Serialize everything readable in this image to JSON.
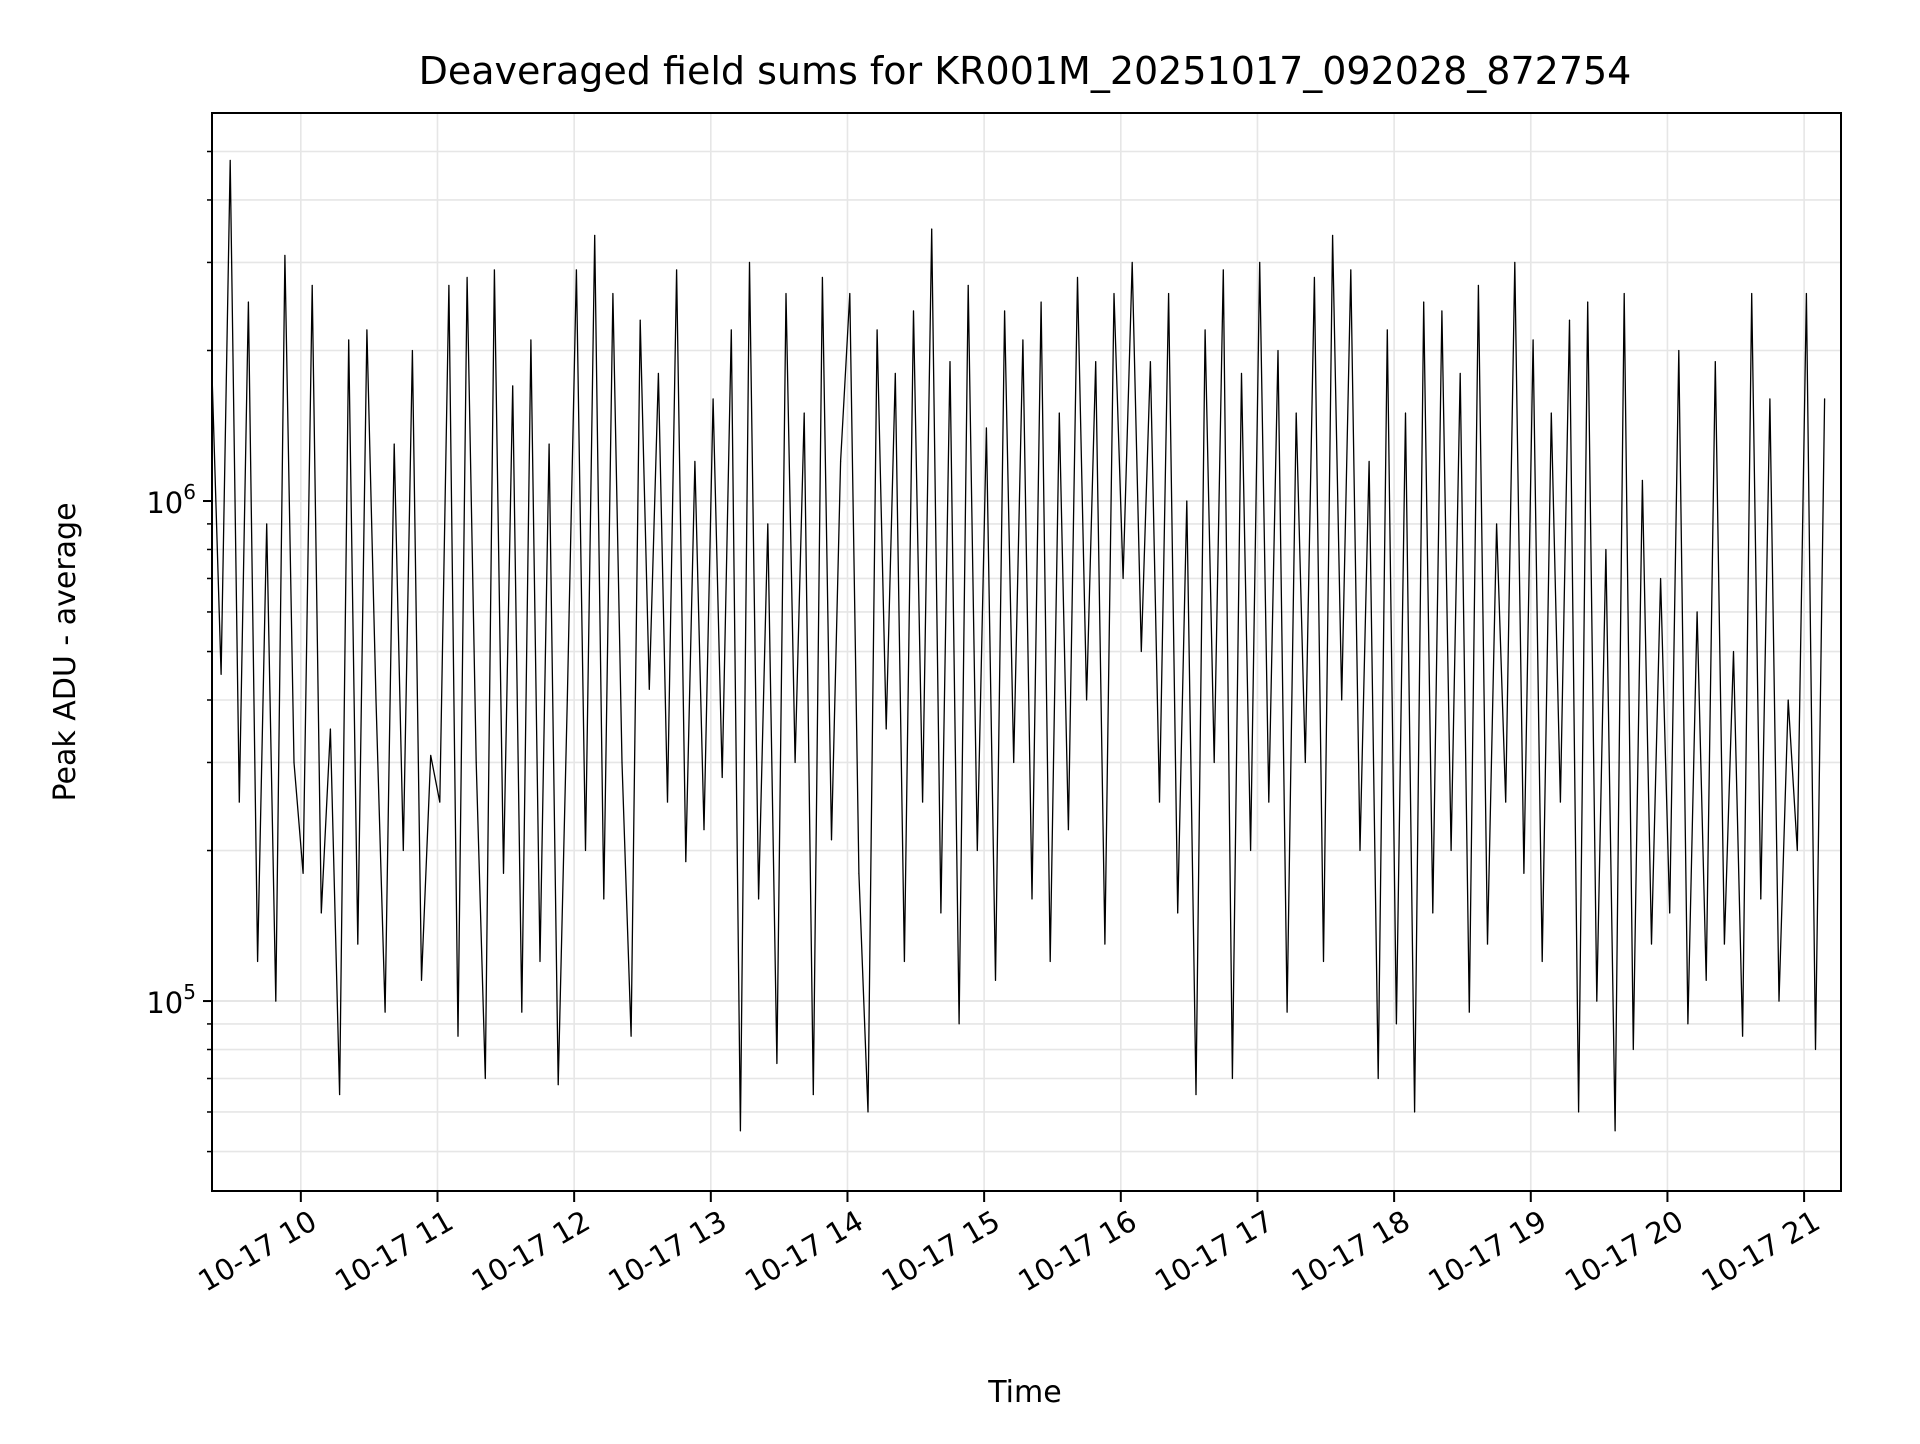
{
  "chart_data": {
    "type": "line",
    "title": "Deaveraged field sums for KR001M_20251017_092028_872754",
    "xlabel": "Time",
    "ylabel": "Peak ADU - average",
    "yscale": "log",
    "ylim": [
      41700,
      5970000
    ],
    "xlim_hours": [
      9.35,
      21.27
    ],
    "x_start_hour": 9.35,
    "x_step_minutes": 4,
    "grid": true,
    "line_color": "#000000",
    "grid_color": "#e6e6e6",
    "xticks": [
      {
        "hour": 10,
        "label": "10-17 10"
      },
      {
        "hour": 11,
        "label": "10-17 11"
      },
      {
        "hour": 12,
        "label": "10-17 12"
      },
      {
        "hour": 13,
        "label": "10-17 13"
      },
      {
        "hour": 14,
        "label": "10-17 14"
      },
      {
        "hour": 15,
        "label": "10-17 15"
      },
      {
        "hour": 16,
        "label": "10-17 16"
      },
      {
        "hour": 17,
        "label": "10-17 17"
      },
      {
        "hour": 18,
        "label": "10-17 18"
      },
      {
        "hour": 19,
        "label": "10-17 19"
      },
      {
        "hour": 20,
        "label": "10-17 20"
      },
      {
        "hour": 21,
        "label": "10-17 21"
      }
    ],
    "yticks": [
      {
        "value": 100000,
        "base": "10",
        "exp": "5"
      },
      {
        "value": 1000000,
        "base": "10",
        "exp": "6"
      }
    ],
    "values": [
      1800000,
      450000,
      4800000,
      250000,
      2500000,
      120000,
      900000,
      100000,
      3100000,
      300000,
      180000,
      2700000,
      150000,
      350000,
      65000,
      2100000,
      130000,
      2200000,
      400000,
      95000,
      1300000,
      200000,
      2000000,
      110000,
      310000,
      250000,
      2700000,
      85000,
      2800000,
      300000,
      70000,
      2900000,
      180000,
      1700000,
      95000,
      2100000,
      120000,
      1300000,
      68000,
      400000,
      2900000,
      200000,
      3400000,
      160000,
      2600000,
      300000,
      85000,
      2300000,
      420000,
      1800000,
      250000,
      2900000,
      190000,
      1200000,
      220000,
      1600000,
      280000,
      2200000,
      55000,
      3000000,
      160000,
      900000,
      75000,
      2600000,
      300000,
      1500000,
      65000,
      2800000,
      210000,
      1200000,
      2600000,
      180000,
      60000,
      2200000,
      350000,
      1800000,
      120000,
      2400000,
      250000,
      3500000,
      150000,
      1900000,
      90000,
      2700000,
      200000,
      1400000,
      110000,
      2400000,
      300000,
      2100000,
      160000,
      2500000,
      120000,
      1500000,
      220000,
      2800000,
      400000,
      1900000,
      130000,
      2600000,
      700000,
      3000000,
      500000,
      1900000,
      250000,
      2600000,
      150000,
      1000000,
      65000,
      2200000,
      300000,
      2900000,
      70000,
      1800000,
      200000,
      3000000,
      250000,
      2000000,
      95000,
      1500000,
      300000,
      2800000,
      120000,
      3400000,
      400000,
      2900000,
      200000,
      1200000,
      70000,
      2200000,
      90000,
      1500000,
      60000,
      2500000,
      150000,
      2400000,
      200000,
      1800000,
      95000,
      2700000,
      130000,
      900000,
      250000,
      3000000,
      180000,
      2100000,
      120000,
      1500000,
      250000,
      2300000,
      60000,
      2500000,
      100000,
      800000,
      55000,
      2600000,
      80000,
      1100000,
      130000,
      700000,
      150000,
      2000000,
      90000,
      600000,
      110000,
      1900000,
      130000,
      500000,
      85000,
      2600000,
      160000,
      1600000,
      100000,
      400000,
      200000,
      2600000,
      80000,
      1600000
    ]
  }
}
